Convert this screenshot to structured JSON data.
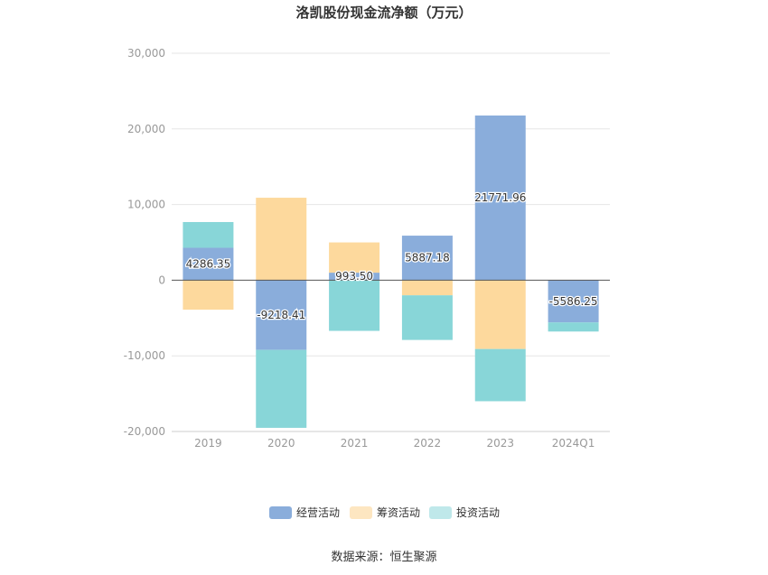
{
  "chart_data": {
    "type": "bar",
    "stacked": true,
    "title": "洛凯股份现金流净额（万元）",
    "categories": [
      "2019",
      "2020",
      "2021",
      "2022",
      "2023",
      "2024Q1"
    ],
    "ylim": [
      -20000,
      30000
    ],
    "yticks": [
      "30,000",
      "20,000",
      "10,000",
      "0",
      "-10,000",
      "-20,000"
    ],
    "ytick_values": [
      30000,
      20000,
      10000,
      0,
      -10000,
      -20000
    ],
    "grid": true,
    "legend_position": "bottom",
    "series": [
      {
        "name": "经营活动",
        "color": "#8aaddb",
        "values": [
          4286.35,
          -9218.41,
          993.5,
          5887.18,
          21771.96,
          -5586.25
        ]
      },
      {
        "name": "筹资活动",
        "color": "#fdd99d",
        "values": [
          -3900,
          10900,
          4000,
          -2000,
          -9100,
          0
        ]
      },
      {
        "name": "投资活动",
        "color": "#88d6d8",
        "values": [
          3400,
          -10300,
          -6700,
          -5900,
          -6900,
          -1200
        ]
      }
    ],
    "data_labels": [
      "4286.35",
      "-9218.41",
      "993.50",
      "5887.18",
      "21771.96",
      "-5586.25"
    ]
  },
  "legend_colors": [
    "#8aaddb",
    "#fde6c1",
    "#bfe8ea"
  ],
  "source": "数据来源：恒生聚源"
}
